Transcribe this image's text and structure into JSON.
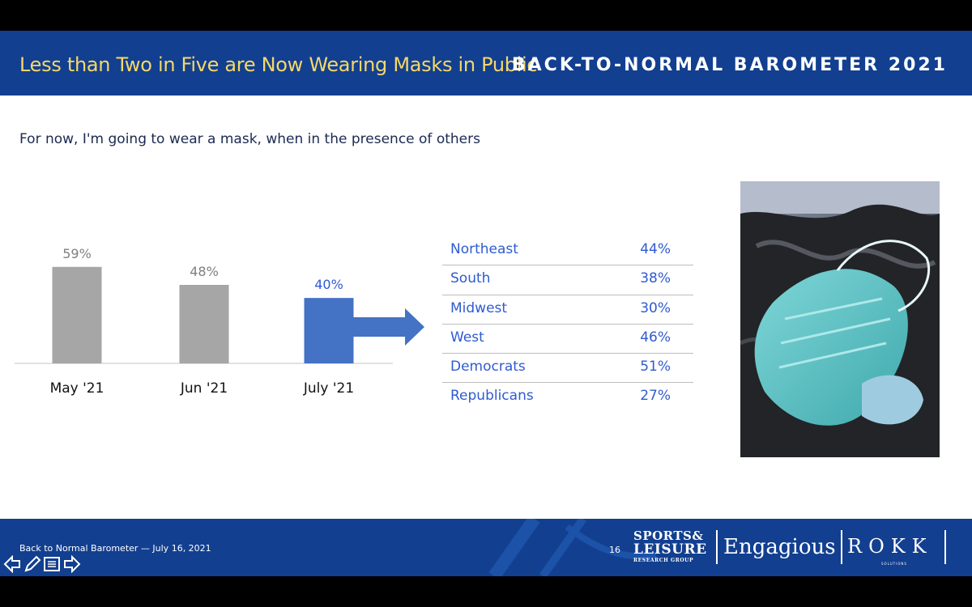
{
  "header": {
    "title": "Less than Two in Five are Now Wearing Masks in Public",
    "brand": "BACK-TO-NORMAL BAROMETER 2021"
  },
  "question": "For now, I'm going to wear a mask, when in the presence of others",
  "chart_data": {
    "type": "bar",
    "categories": [
      "May '21",
      "Jun '21",
      "July '21"
    ],
    "values": [
      59,
      48,
      40
    ],
    "value_labels": [
      "59%",
      "48%",
      "40%"
    ],
    "colors": [
      "#a6a6a6",
      "#a6a6a6",
      "#4472c4"
    ],
    "label_colors": [
      "#7f7f7f",
      "#7f7f7f",
      "#2f5bd1"
    ],
    "ylim": [
      0,
      100
    ]
  },
  "breakdown": [
    {
      "label": "Northeast",
      "value": "44%"
    },
    {
      "label": "South",
      "value": "38%"
    },
    {
      "label": "Midwest",
      "value": "30%"
    },
    {
      "label": "West",
      "value": "46%"
    },
    {
      "label": "Democrats",
      "value": "51%"
    },
    {
      "label": "Republicans",
      "value": "27%"
    }
  ],
  "footer": {
    "source": "Back to Normal Barometer — July 16, 2021",
    "page_number": "16",
    "logo_sls_line1": "SPORTS&",
    "logo_sls_line2": "LEISURE",
    "logo_sls_line3": "RESEARCH GROUP",
    "logo_engagious": "Engagious",
    "logo_rokk": "ROKK",
    "logo_rokk_sub": "SOLUTIONS"
  },
  "nav_icons": [
    "arrow-left-icon",
    "pen-icon",
    "menu-icon",
    "arrow-right-icon"
  ],
  "colors": {
    "header_bg": "#123f8f",
    "header_title": "#f5d86a",
    "accent_blue": "#4472c4",
    "table_text": "#2f5bd1",
    "bar_gray": "#a6a6a6"
  }
}
